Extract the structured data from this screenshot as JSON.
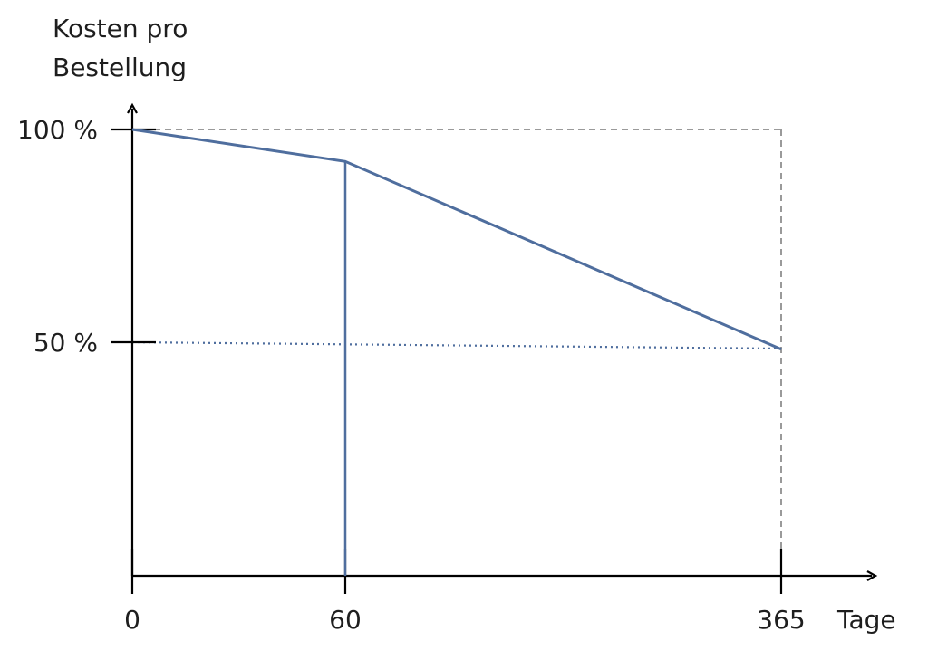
{
  "chart_data": {
    "type": "line",
    "ylabel_line1": "Kosten pro",
    "ylabel_line2": "Bestellung",
    "xlabel": "Tage",
    "x_ticks": [
      "0",
      "60",
      "365"
    ],
    "y_ticks": [
      "100 %",
      "50 %"
    ],
    "series": [
      {
        "x": [
          0,
          60,
          365
        ],
        "y": [
          100,
          92.5,
          48.5
        ]
      }
    ],
    "reference_lines": {
      "horizontal_dotted_at": 50,
      "vertical_solid_at": 60,
      "vertical_dashed_at": 365,
      "horizontal_dashed_at": 100
    },
    "xlim": [
      0,
      365
    ],
    "ylim": [
      0,
      100
    ],
    "colors": {
      "series": "#4f6e9e",
      "axis": "#000000",
      "dashed": "#9a9a9a"
    }
  }
}
